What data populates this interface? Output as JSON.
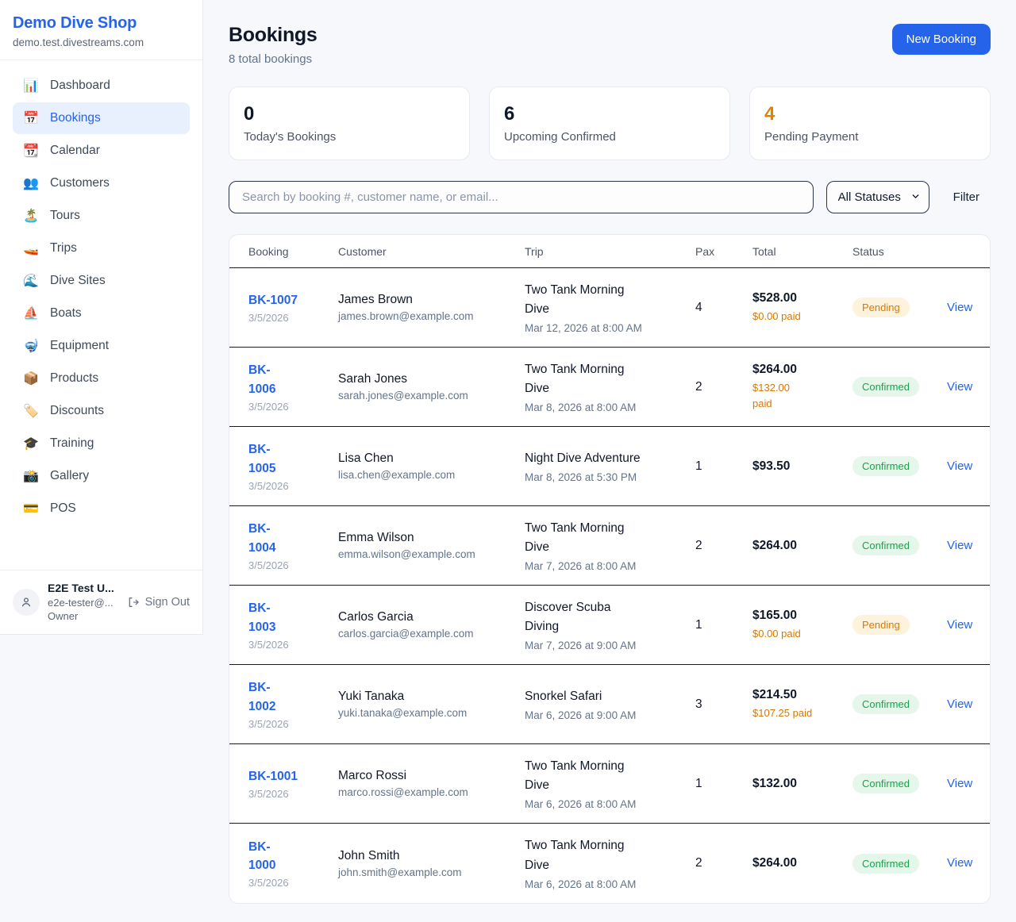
{
  "sidebar": {
    "brand": {
      "name": "Demo Dive Shop",
      "domain": "demo.test.divestreams.com"
    },
    "items": [
      {
        "label": "Dashboard",
        "icon": "📊",
        "icon_name": "dashboard-icon",
        "active": false
      },
      {
        "label": "Bookings",
        "icon": "📅",
        "icon_name": "bookings-icon",
        "active": true
      },
      {
        "label": "Calendar",
        "icon": "📆",
        "icon_name": "calendar-icon",
        "active": false
      },
      {
        "label": "Customers",
        "icon": "👥",
        "icon_name": "customers-icon",
        "active": false
      },
      {
        "label": "Tours",
        "icon": "🏝️",
        "icon_name": "tours-icon",
        "active": false
      },
      {
        "label": "Trips",
        "icon": "🚤",
        "icon_name": "trips-icon",
        "active": false
      },
      {
        "label": "Dive Sites",
        "icon": "🌊",
        "icon_name": "dive-sites-icon",
        "active": false
      },
      {
        "label": "Boats",
        "icon": "⛵",
        "icon_name": "boats-icon",
        "active": false
      },
      {
        "label": "Equipment",
        "icon": "🤿",
        "icon_name": "equipment-icon",
        "active": false
      },
      {
        "label": "Products",
        "icon": "📦",
        "icon_name": "products-icon",
        "active": false
      },
      {
        "label": "Discounts",
        "icon": "🏷️",
        "icon_name": "discounts-icon",
        "active": false
      },
      {
        "label": "Training",
        "icon": "🎓",
        "icon_name": "training-icon",
        "active": false
      },
      {
        "label": "Gallery",
        "icon": "📸",
        "icon_name": "gallery-icon",
        "active": false
      },
      {
        "label": "POS",
        "icon": "💳",
        "icon_name": "pos-icon",
        "active": false
      }
    ],
    "user": {
      "name": "E2E Test U...",
      "email": "e2e-tester@...",
      "role": "Owner",
      "sign_out_label": "Sign Out"
    }
  },
  "header": {
    "title": "Bookings",
    "subtitle": "8 total bookings",
    "new_booking_label": "New Booking"
  },
  "stats": [
    {
      "value": "0",
      "label": "Today's Bookings",
      "color": "#101828"
    },
    {
      "value": "6",
      "label": "Upcoming Confirmed",
      "color": "#101828"
    },
    {
      "value": "4",
      "label": "Pending Payment",
      "color": "#dd8500"
    }
  ],
  "controls": {
    "search_placeholder": "Search by booking #, customer name, or email...",
    "status_filter_value": "All Statuses",
    "filter_label": "Filter"
  },
  "table": {
    "headers": [
      "Booking",
      "Customer",
      "Trip",
      "Pax",
      "Total",
      "Status"
    ],
    "view_label": "View",
    "rows": [
      {
        "id": "BK-1007",
        "date": "3/5/2026",
        "customer": "James Brown",
        "email": "james.brown@example.com",
        "trip": "Two Tank Morning\nDive",
        "trip_datetime": "Mar 12, 2026 at 8:00 AM",
        "pax": "4",
        "total": "$528.00",
        "paid": "$0.00 paid",
        "status": "Pending"
      },
      {
        "id": "BK-\n1006",
        "date": "3/5/2026",
        "customer": "Sarah Jones",
        "email": "sarah.jones@example.com",
        "trip": "Two Tank Morning\nDive",
        "trip_datetime": "Mar 8, 2026 at 8:00 AM",
        "pax": "2",
        "total": "$264.00",
        "paid": "$132.00\npaid",
        "status": "Confirmed"
      },
      {
        "id": "BK-\n1005",
        "date": "3/5/2026",
        "customer": "Lisa Chen",
        "email": "lisa.chen@example.com",
        "trip": "Night Dive Adventure",
        "trip_datetime": "Mar 8, 2026 at 5:30 PM",
        "pax": "1",
        "total": "$93.50",
        "paid": null,
        "status": "Confirmed"
      },
      {
        "id": "BK-\n1004",
        "date": "3/5/2026",
        "customer": "Emma Wilson",
        "email": "emma.wilson@example.com",
        "trip": "Two Tank Morning\nDive",
        "trip_datetime": "Mar 7, 2026 at 8:00 AM",
        "pax": "2",
        "total": "$264.00",
        "paid": null,
        "status": "Confirmed"
      },
      {
        "id": "BK-\n1003",
        "date": "3/5/2026",
        "customer": "Carlos Garcia",
        "email": "carlos.garcia@example.com",
        "trip": "Discover Scuba\nDiving",
        "trip_datetime": "Mar 7, 2026 at 9:00 AM",
        "pax": "1",
        "total": "$165.00",
        "paid": "$0.00 paid",
        "status": "Pending"
      },
      {
        "id": "BK-\n1002",
        "date": "3/5/2026",
        "customer": "Yuki Tanaka",
        "email": "yuki.tanaka@example.com",
        "trip": "Snorkel Safari",
        "trip_datetime": "Mar 6, 2026 at 9:00 AM",
        "pax": "3",
        "total": "$214.50",
        "paid": "$107.25 paid",
        "status": "Confirmed"
      },
      {
        "id": "BK-1001",
        "date": "3/5/2026",
        "customer": "Marco Rossi",
        "email": "marco.rossi@example.com",
        "trip": "Two Tank Morning\nDive",
        "trip_datetime": "Mar 6, 2026 at 8:00 AM",
        "pax": "1",
        "total": "$132.00",
        "paid": null,
        "status": "Confirmed"
      },
      {
        "id": "BK-\n1000",
        "date": "3/5/2026",
        "customer": "John Smith",
        "email": "john.smith@example.com",
        "trip": "Two Tank Morning\nDive",
        "trip_datetime": "Mar 6, 2026 at 8:00 AM",
        "pax": "2",
        "total": "$264.00",
        "paid": null,
        "status": "Confirmed"
      }
    ]
  },
  "colors": {
    "accent_blue": "#2563eb",
    "pending_text": "#d97706",
    "pending_bg": "#fdf3dd",
    "confirmed_text": "#16a34a",
    "confirmed_bg": "#e4f7ea"
  }
}
